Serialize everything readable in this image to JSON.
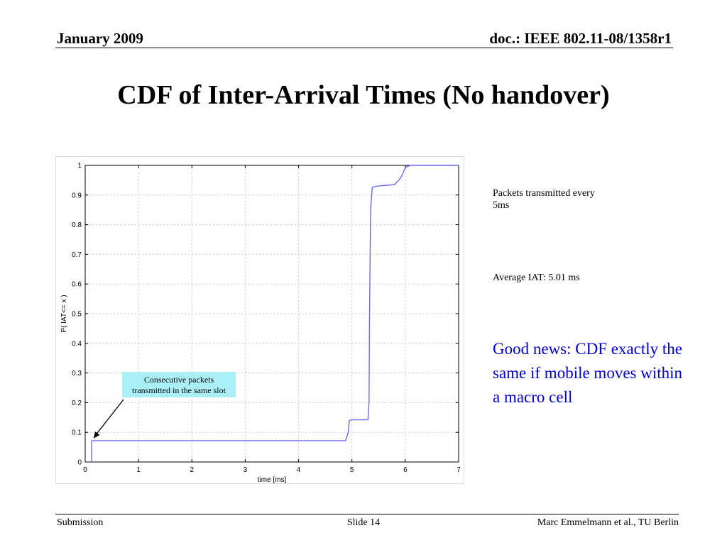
{
  "header": {
    "date": "January 2009",
    "doc": "doc.: IEEE 802.11-08/1358r1"
  },
  "slide_title": "CDF of Inter-Arrival Times (No handover)",
  "side_notes": {
    "packets": "Packets transmitted every 5ms",
    "average": "Average IAT: 5.01 ms",
    "good_news": "Good news: CDF exactly the same if mobile moves within a macro cell"
  },
  "footer": {
    "left": "Submission",
    "center": "Slide 14",
    "right": "Marc Emmelmann et al., TU Berlin"
  },
  "colors": {
    "line": "#6b6bf0",
    "annotation_fill": "#aaf0f8",
    "good_news": "#0000cc"
  },
  "chart_data": {
    "type": "line",
    "title": "",
    "xlabel": "time [ms]",
    "ylabel": "P( IAT<= x )",
    "xlim": [
      0,
      7
    ],
    "ylim": [
      0,
      1
    ],
    "xticks": [
      "0",
      "1",
      "2",
      "3",
      "4",
      "5",
      "6",
      "7"
    ],
    "yticks": [
      "0",
      "0.1",
      "0.2",
      "0.3",
      "0.4",
      "0.5",
      "0.6",
      "0.7",
      "0.8",
      "0.9",
      "1"
    ],
    "grid": true,
    "series": [
      {
        "x": [
          0.12,
          0.12,
          0.13,
          4.88,
          4.93,
          4.95,
          5.0,
          5.3,
          5.32,
          5.33,
          5.35,
          5.38,
          5.42,
          5.45,
          5.5,
          5.57,
          5.6,
          5.8,
          5.82,
          5.88,
          5.92,
          5.96,
          5.98,
          6.0,
          6.02,
          6.07,
          6.1,
          7.0
        ],
        "y": [
          0,
          0.07,
          0.072,
          0.072,
          0.1,
          0.14,
          0.142,
          0.142,
          0.2,
          0.5,
          0.85,
          0.925,
          0.928,
          0.93,
          0.93,
          0.932,
          0.932,
          0.935,
          0.94,
          0.95,
          0.96,
          0.975,
          0.985,
          0.99,
          0.995,
          0.998,
          1.0,
          1.0
        ]
      }
    ],
    "annotation": {
      "text_line1": "Consecutive packets",
      "text_line2": "transmitted in the same slot",
      "arrow_to": [
        0.13,
        0.07
      ]
    }
  }
}
